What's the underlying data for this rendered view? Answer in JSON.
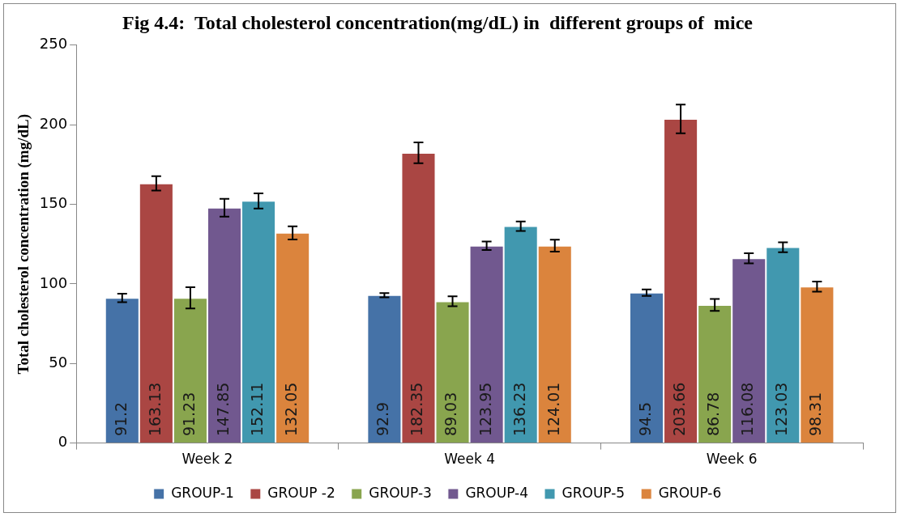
{
  "chart_data": {
    "type": "bar",
    "title": "Fig 4.4:  Total cholesterol concentration(mg/dL) in  different groups of  mice",
    "ylabel": "Total cholesterol concentration (mg/dL)",
    "categories": [
      "Week 2",
      "Week 4",
      "Week 6"
    ],
    "series": [
      {
        "name": "GROUP-1",
        "color": "#4572a7",
        "values": [
          91.2,
          92.9,
          94.5
        ],
        "errors": [
          2.7,
          1.3,
          2
        ]
      },
      {
        "name": "GROUP -2",
        "color": "#aa4643",
        "values": [
          163.13,
          182.35,
          203.66
        ],
        "errors": [
          4.5,
          6.5,
          9
        ]
      },
      {
        "name": "GROUP-3",
        "color": "#89a54e",
        "values": [
          91.23,
          89.03,
          86.78
        ],
        "errors": [
          6.7,
          3.1,
          3.7
        ]
      },
      {
        "name": "GROUP-4",
        "color": "#71588f",
        "values": [
          147.85,
          123.95,
          116.08
        ],
        "errors": [
          5.6,
          2.7,
          3.2
        ]
      },
      {
        "name": "GROUP-5",
        "color": "#4198af",
        "values": [
          152.11,
          136.23,
          123.03
        ],
        "errors": [
          4.8,
          3,
          3.1
        ]
      },
      {
        "name": "GROUP-6",
        "color": "#db843d",
        "values": [
          132.05,
          124.01,
          98.31
        ],
        "errors": [
          4.1,
          3.8,
          3.2
        ]
      }
    ],
    "ylim": [
      0,
      250
    ],
    "yticks": [
      0,
      50,
      100,
      150,
      200,
      250
    ],
    "grid": false,
    "legend": "bottom",
    "data_labels": true
  }
}
